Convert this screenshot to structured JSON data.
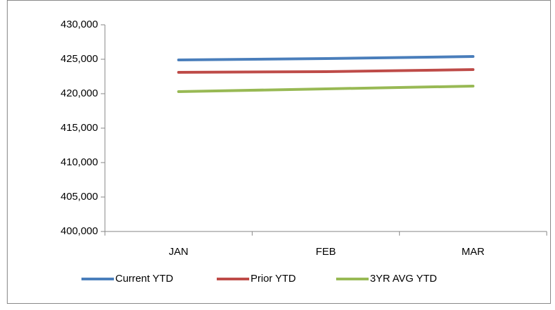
{
  "chart_data": {
    "type": "line",
    "categories": [
      "JAN",
      "FEB",
      "MAR"
    ],
    "series": [
      {
        "name": "Current YTD",
        "color": "#4a7ebb",
        "values": [
          424900,
          425100,
          425400
        ]
      },
      {
        "name": "Prior YTD",
        "color": "#be4b48",
        "values": [
          423100,
          423200,
          423500
        ]
      },
      {
        "name": "3YR AVG YTD",
        "color": "#98b954",
        "values": [
          420300,
          420700,
          421100
        ]
      }
    ],
    "ylim": [
      400000,
      430000
    ],
    "yticks": [
      {
        "value": 400000,
        "label": "400,000"
      },
      {
        "value": 405000,
        "label": "405,000"
      },
      {
        "value": 410000,
        "label": "410,000"
      },
      {
        "value": 415000,
        "label": "415,000"
      },
      {
        "value": 420000,
        "label": "420,000"
      },
      {
        "value": 425000,
        "label": "425,000"
      },
      {
        "value": 430000,
        "label": "430,000"
      }
    ],
    "grid": false,
    "legend": "bottom"
  }
}
